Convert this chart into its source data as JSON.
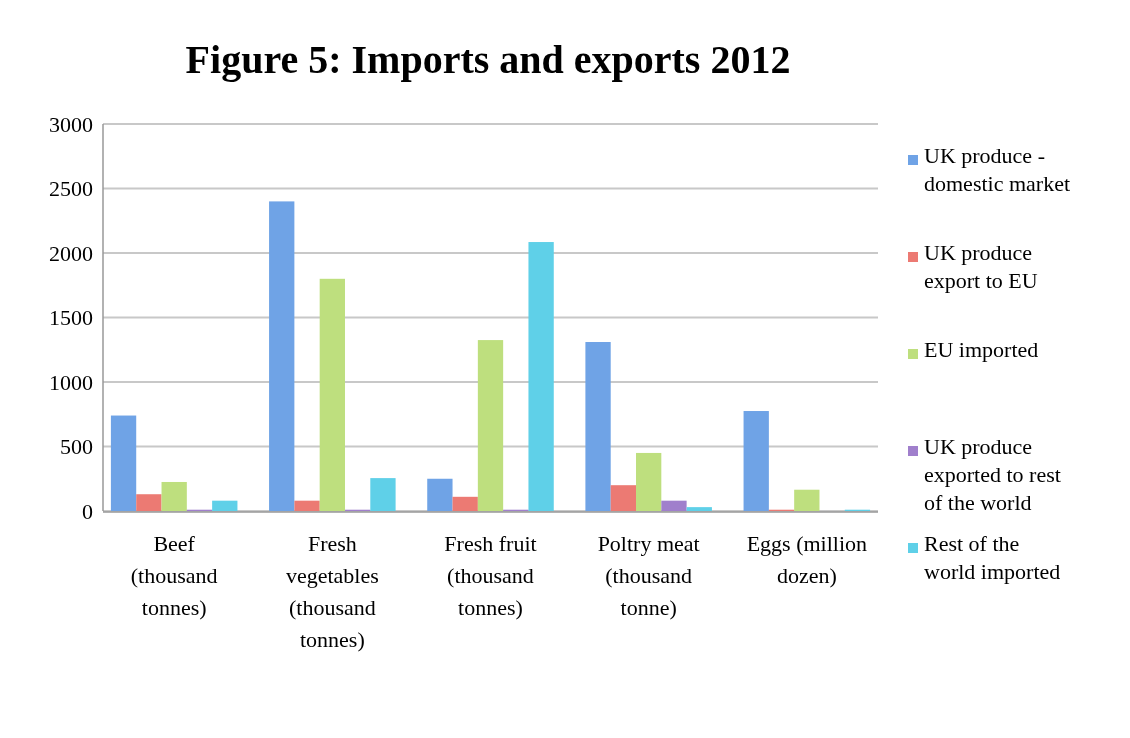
{
  "chart_data": {
    "type": "bar",
    "title": "Figure 5: Imports and exports 2012",
    "categories": [
      "Beef (thousand tonnes)",
      "Fresh vegetables (thousand tonnes)",
      "Fresh fruit (thousand tonnes)",
      "Poltry meat (thousand tonne)",
      "Eggs (million dozen)"
    ],
    "series": [
      {
        "name": "UK produce - domestic market",
        "color": "#6fa3e6",
        "values": [
          740,
          2400,
          250,
          1310,
          775
        ]
      },
      {
        "name": "UK produce export to EU",
        "color": "#ec7a73",
        "values": [
          130,
          80,
          110,
          200,
          10
        ]
      },
      {
        "name": "EU imported",
        "color": "#bedf7e",
        "values": [
          225,
          1800,
          1325,
          450,
          165
        ]
      },
      {
        "name": "UK produce exported to rest of the world",
        "color": "#a07fcc",
        "values": [
          10,
          10,
          10,
          80,
          0
        ]
      },
      {
        "name": "Rest of the world imported",
        "color": "#5fd0e8",
        "values": [
          80,
          255,
          2085,
          30,
          10
        ]
      }
    ],
    "ylim": [
      0,
      3000
    ],
    "yticks": [
      0,
      500,
      1000,
      1500,
      2000,
      2500,
      3000
    ],
    "grid": "y",
    "legend": "right"
  }
}
